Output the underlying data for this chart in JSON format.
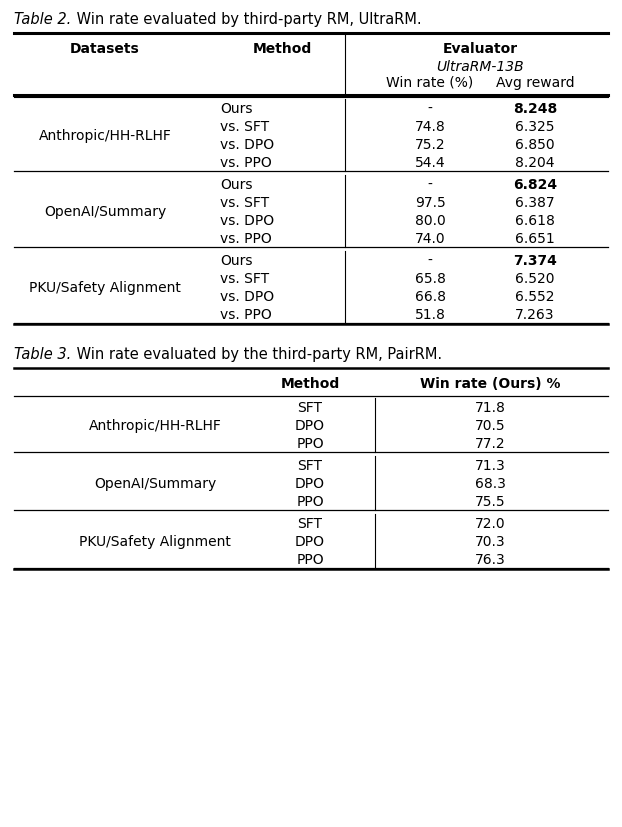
{
  "table2_groups": [
    {
      "dataset": "Anthropic/HH-RLHF",
      "rows": [
        {
          "method": "Ours",
          "win_rate": "-",
          "avg_reward": "8.248",
          "bold_reward": true
        },
        {
          "method": "vs. SFT",
          "win_rate": "74.8",
          "avg_reward": "6.325",
          "bold_reward": false
        },
        {
          "method": "vs. DPO",
          "win_rate": "75.2",
          "avg_reward": "6.850",
          "bold_reward": false
        },
        {
          "method": "vs. PPO",
          "win_rate": "54.4",
          "avg_reward": "8.204",
          "bold_reward": false
        }
      ]
    },
    {
      "dataset": "OpenAI/Summary",
      "rows": [
        {
          "method": "Ours",
          "win_rate": "-",
          "avg_reward": "6.824",
          "bold_reward": true
        },
        {
          "method": "vs. SFT",
          "win_rate": "97.5",
          "avg_reward": "6.387",
          "bold_reward": false
        },
        {
          "method": "vs. DPO",
          "win_rate": "80.0",
          "avg_reward": "6.618",
          "bold_reward": false
        },
        {
          "method": "vs. PPO",
          "win_rate": "74.0",
          "avg_reward": "6.651",
          "bold_reward": false
        }
      ]
    },
    {
      "dataset": "PKU/Safety Alignment",
      "rows": [
        {
          "method": "Ours",
          "win_rate": "-",
          "avg_reward": "7.374",
          "bold_reward": true
        },
        {
          "method": "vs. SFT",
          "win_rate": "65.8",
          "avg_reward": "6.520",
          "bold_reward": false
        },
        {
          "method": "vs. DPO",
          "win_rate": "66.8",
          "avg_reward": "6.552",
          "bold_reward": false
        },
        {
          "method": "vs. PPO",
          "win_rate": "51.8",
          "avg_reward": "7.263",
          "bold_reward": false
        }
      ]
    }
  ],
  "table3_groups": [
    {
      "dataset": "Anthropic/HH-RLHF",
      "rows": [
        {
          "method": "SFT",
          "win_rate": "71.8"
        },
        {
          "method": "DPO",
          "win_rate": "70.5"
        },
        {
          "method": "PPO",
          "win_rate": "77.2"
        }
      ]
    },
    {
      "dataset": "OpenAI/Summary",
      "rows": [
        {
          "method": "SFT",
          "win_rate": "71.3"
        },
        {
          "method": "DPO",
          "win_rate": "68.3"
        },
        {
          "method": "PPO",
          "win_rate": "75.5"
        }
      ]
    },
    {
      "dataset": "PKU/Safety Alignment",
      "rows": [
        {
          "method": "SFT",
          "win_rate": "72.0"
        },
        {
          "method": "DPO",
          "win_rate": "70.3"
        },
        {
          "method": "PPO",
          "win_rate": "76.3"
        }
      ]
    }
  ],
  "t2_title_italic": "Table 2.",
  "t2_title_rest": " Win rate evaluated by third-party RM, UltraRM.",
  "t3_title_italic": "Table 3.",
  "t3_title_rest": " Win rate evaluated by the third-party RM, PairRM.",
  "evaluator_label": "Evaluator",
  "evaluator_sub": "UltraRM-13B",
  "t2_col1_header": "Datasets",
  "t2_col2_header": "Method",
  "t2_col3_header": "Win rate (%)",
  "t2_col4_header": "Avg reward",
  "t3_col2_header": "Method",
  "t3_col3_header": "Win rate (Ours) %",
  "bg_color": "#ffffff",
  "text_color": "#000000",
  "fs": 10.0,
  "title_fs": 10.5
}
